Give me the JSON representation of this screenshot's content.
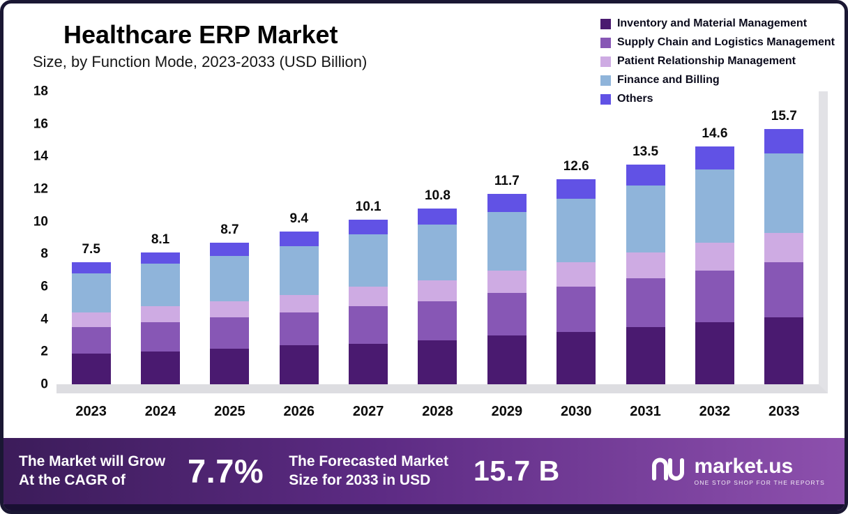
{
  "title": "Healthcare ERP Market",
  "subtitle": "Size, by Function Mode, 2023-2033 (USD Billion)",
  "legend": [
    {
      "label": "Inventory and Material Management",
      "color": "#4a1a70"
    },
    {
      "label": "Supply Chain and Logistics Management",
      "color": "#8757b5"
    },
    {
      "label": "Patient Relationship Management",
      "color": "#ceabe3"
    },
    {
      "label": "Finance and Billing",
      "color": "#8fb4da"
    },
    {
      "label": "Others",
      "color": "#6152e5"
    }
  ],
  "chart_data": {
    "type": "bar",
    "stacked": true,
    "title": "Healthcare ERP Market Size, by Function Mode, 2023-2033 (USD Billion)",
    "categories": [
      "2023",
      "2024",
      "2025",
      "2026",
      "2027",
      "2028",
      "2029",
      "2030",
      "2031",
      "2032",
      "2033"
    ],
    "series": [
      {
        "name": "Inventory and Material Management",
        "color": "#4a1a70",
        "values": [
          1.9,
          2.0,
          2.2,
          2.4,
          2.5,
          2.7,
          3.0,
          3.2,
          3.5,
          3.8,
          4.1
        ]
      },
      {
        "name": "Supply Chain and Logistics Management",
        "color": "#8757b5",
        "values": [
          1.6,
          1.8,
          1.9,
          2.0,
          2.3,
          2.4,
          2.6,
          2.8,
          3.0,
          3.2,
          3.4
        ]
      },
      {
        "name": "Patient Relationship Management",
        "color": "#ceabe3",
        "values": [
          0.9,
          1.0,
          1.0,
          1.1,
          1.2,
          1.3,
          1.4,
          1.5,
          1.6,
          1.7,
          1.8
        ]
      },
      {
        "name": "Finance and Billing",
        "color": "#8fb4da",
        "values": [
          2.4,
          2.6,
          2.8,
          3.0,
          3.2,
          3.4,
          3.6,
          3.9,
          4.1,
          4.5,
          4.9
        ]
      },
      {
        "name": "Others",
        "color": "#6152e5",
        "values": [
          0.7,
          0.7,
          0.8,
          0.9,
          0.9,
          1.0,
          1.1,
          1.2,
          1.3,
          1.4,
          1.5
        ]
      }
    ],
    "totals": [
      7.5,
      8.1,
      8.7,
      9.4,
      10.1,
      10.8,
      11.7,
      12.6,
      13.5,
      14.6,
      15.7
    ],
    "xlabel": "",
    "ylabel": "",
    "ylim": [
      0,
      18
    ],
    "yticks": [
      0,
      2,
      4,
      6,
      8,
      10,
      12,
      14,
      16,
      18
    ],
    "grid": false,
    "legend_position": "top-right"
  },
  "footer": {
    "cagr_line1": "The Market will Grow",
    "cagr_line2": "At the CAGR of",
    "cagr_value": "7.7%",
    "forecast_line1": "The Forecasted Market",
    "forecast_line2": "Size for 2033 in USD",
    "forecast_value": "15.7 B",
    "brand": "market.us",
    "brand_tagline": "ONE STOP SHOP FOR THE REPORTS"
  }
}
